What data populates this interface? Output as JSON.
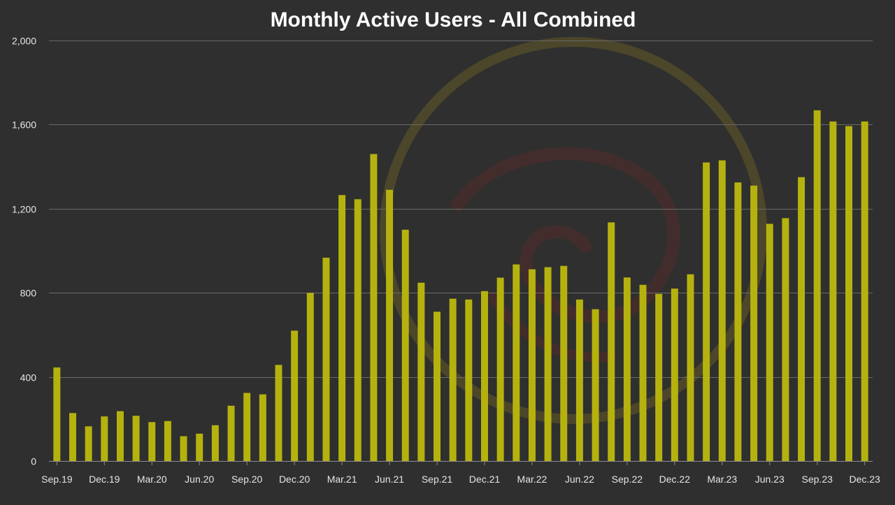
{
  "chart_data": {
    "type": "bar",
    "title": "Monthly Active Users - All Combined",
    "xlabel": "",
    "ylabel": "",
    "ylim": [
      0,
      2000
    ],
    "yticks": [
      "0",
      "400",
      "800",
      "1,200",
      "1,600",
      "2,000"
    ],
    "ytick_values": [
      0,
      400,
      800,
      1200,
      1600,
      2000
    ],
    "grid": true,
    "legend": "none",
    "bar_color": "#b5b20f",
    "background_color": "#2f2f2f",
    "categories": [
      "Sep.19",
      "Oct.19",
      "Nov.19",
      "Dec.19",
      "Jan.20",
      "Feb.20",
      "Mar.20",
      "Apr.20",
      "May.20",
      "Jun.20",
      "Jul.20",
      "Aug.20",
      "Sep.20",
      "Oct.20",
      "Nov.20",
      "Dec.20",
      "Jan.21",
      "Feb.21",
      "Mar.21",
      "Apr.21",
      "May.21",
      "Jun.21",
      "Jul.21",
      "Aug.21",
      "Sep.21",
      "Oct.21",
      "Nov.21",
      "Dec.21",
      "Jan.22",
      "Feb.22",
      "Mar.22",
      "Apr.22",
      "May.22",
      "Jun.22",
      "Jul.22",
      "Aug.22",
      "Sep.22",
      "Oct.22",
      "Nov.22",
      "Dec.22",
      "Jan.23",
      "Feb.23",
      "Mar.23",
      "Apr.23",
      "May.23",
      "Jun.23",
      "Jul.23",
      "Aug.23",
      "Sep.23",
      "Oct.23",
      "Nov.23",
      "Dec.23"
    ],
    "values": [
      445,
      228,
      165,
      212,
      237,
      215,
      185,
      190,
      118,
      130,
      170,
      263,
      324,
      317,
      457,
      620,
      800,
      967,
      1265,
      1245,
      1460,
      1290,
      1100,
      848,
      710,
      772,
      768,
      808,
      872,
      935,
      912,
      922,
      928,
      768,
      722,
      1135,
      873,
      838,
      795,
      820,
      888,
      1420,
      1430,
      1325,
      1310,
      1128,
      1155,
      1350,
      1668,
      1615,
      1593,
      1615
    ],
    "x_tick_labels": [
      {
        "index": 0,
        "label": "Sep.19"
      },
      {
        "index": 3,
        "label": "Dec.19"
      },
      {
        "index": 6,
        "label": "Mar.20"
      },
      {
        "index": 9,
        "label": "Jun.20"
      },
      {
        "index": 12,
        "label": "Sep.20"
      },
      {
        "index": 15,
        "label": "Dec.20"
      },
      {
        "index": 18,
        "label": "Mar.21"
      },
      {
        "index": 21,
        "label": "Jun.21"
      },
      {
        "index": 24,
        "label": "Sep.21"
      },
      {
        "index": 27,
        "label": "Dec.21"
      },
      {
        "index": 30,
        "label": "Mar.22"
      },
      {
        "index": 33,
        "label": "Jun.22"
      },
      {
        "index": 36,
        "label": "Sep.22"
      },
      {
        "index": 39,
        "label": "Dec.22"
      },
      {
        "index": 42,
        "label": "Mar.23"
      },
      {
        "index": 45,
        "label": "Jun.23"
      },
      {
        "index": 48,
        "label": "Sep.23"
      },
      {
        "index": 51,
        "label": "Dec.23"
      }
    ]
  }
}
